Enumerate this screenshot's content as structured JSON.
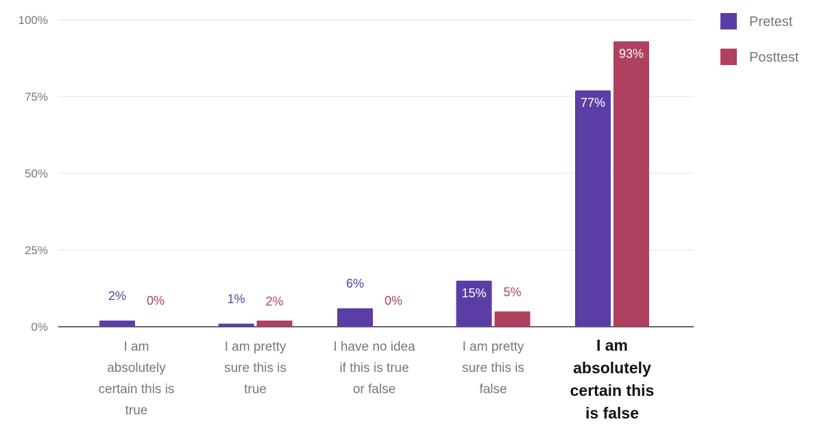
{
  "chart_data": {
    "type": "bar",
    "categories": [
      "I am absolutely certain this is true",
      "I am pretty sure this is true",
      "I have no idea if this is true or false",
      "I am pretty sure this is false",
      "I am absolutely certain this is false"
    ],
    "category_lines": [
      [
        "I am",
        "absolutely",
        "certain this is",
        "true"
      ],
      [
        "I am pretty",
        "sure this is",
        "true"
      ],
      [
        "I have no idea",
        "if this is true",
        "or false"
      ],
      [
        "I am pretty",
        "sure this is",
        "false"
      ],
      [
        "I am",
        "absolutely",
        "certain this",
        "is false"
      ]
    ],
    "highlighted_category_index": 4,
    "series": [
      {
        "name": "Pretest",
        "values": [
          2,
          1,
          6,
          15,
          77
        ],
        "labels": [
          "2%",
          "1%",
          "6%",
          "15%",
          "77%"
        ],
        "color": "#5a3ea6"
      },
      {
        "name": "Posttest",
        "values": [
          0,
          2,
          0,
          5,
          93
        ],
        "labels": [
          "0%",
          "2%",
          "0%",
          "5%",
          "93%"
        ],
        "color": "#b0405f"
      }
    ],
    "yticks": [
      "0%",
      "25%",
      "50%",
      "75%",
      "100%"
    ],
    "ylim": [
      0,
      100
    ],
    "grid": true,
    "legend_position": "top-right",
    "title": "",
    "xlabel": "",
    "ylabel": ""
  }
}
